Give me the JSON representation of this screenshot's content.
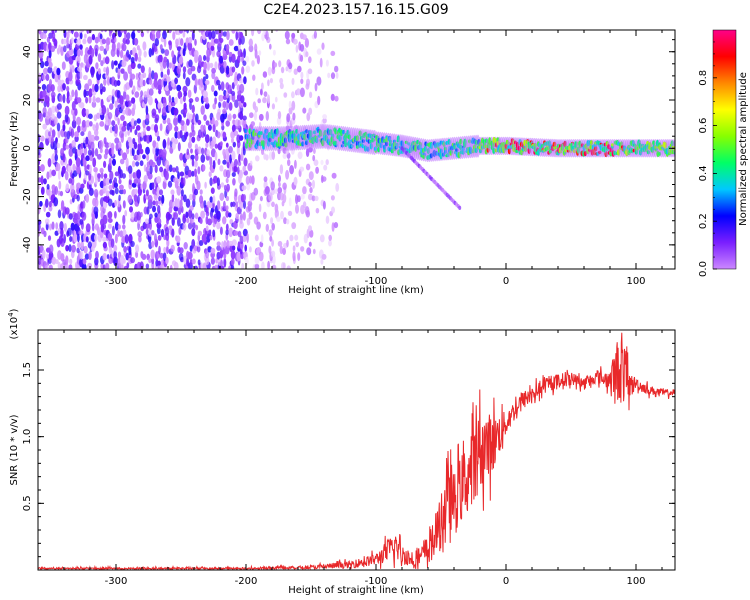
{
  "title": "C2E4.2023.157.16.15.G09",
  "colors": {
    "snr_line": "#e8282a",
    "spectrogram_scale": [
      "#ffffff",
      "#cc88ff",
      "#7a1fff",
      "#0000ff",
      "#00c8ff",
      "#00ff66",
      "#88ff00",
      "#ffff00",
      "#ff8800",
      "#ff0000",
      "#ff0088"
    ]
  },
  "chart_data": [
    {
      "type": "heatmap",
      "name": "spectrogram",
      "xlabel": "Height of straight line (km)",
      "ylabel": "Frequency (Hz)",
      "xlim": [
        -360,
        130
      ],
      "ylim": [
        -50,
        49
      ],
      "xticks": [
        -300,
        -200,
        -100,
        0,
        100
      ],
      "xtick_labels": [
        "-300",
        "-200",
        "-100",
        "0",
        "100"
      ],
      "yticks": [
        40,
        20,
        0,
        -20,
        -40
      ],
      "ytick_labels": [
        "40",
        "20",
        "0",
        "-20",
        "-40"
      ],
      "colorbar": {
        "label": "Normalized spectral amplitude",
        "range": [
          0,
          1
        ],
        "ticks": [
          0.0,
          0.2,
          0.4,
          0.6,
          0.8
        ],
        "tick_labels": [
          "0.0",
          "0.2",
          "0.4",
          "0.6",
          "0.8"
        ]
      },
      "features": {
        "noise_region_x": [
          -360,
          -130
        ],
        "dense_noise_region_x": [
          -360,
          -200
        ],
        "signal_band_x": [
          -200,
          130
        ],
        "signal_band_center_hz": [
          [
            -200,
            4
          ],
          [
            -170,
            4
          ],
          [
            -140,
            5
          ],
          [
            -110,
            3
          ],
          [
            -80,
            1
          ],
          [
            -60,
            -1
          ],
          [
            -40,
            0
          ],
          [
            -20,
            1
          ],
          [
            0,
            1
          ],
          [
            40,
            0
          ],
          [
            80,
            0
          ],
          [
            130,
            0
          ]
        ],
        "peak_region_x": [
          -15,
          100
        ]
      }
    },
    {
      "type": "line",
      "name": "snr",
      "xlabel": "Height of straight line (km)",
      "ylabel": "SNR (10 * v/v)",
      "y_multiplier": "(x10",
      "y_multiplier_exp": "4",
      "y_multiplier_close": ")",
      "xlim": [
        -360,
        130
      ],
      "ylim": [
        0,
        1.8
      ],
      "xticks": [
        -300,
        -200,
        -100,
        0,
        100
      ],
      "xtick_labels": [
        "-300",
        "-200",
        "-100",
        "0",
        "100"
      ],
      "yticks": [
        0.5,
        1.0,
        1.5
      ],
      "ytick_labels": [
        "0.5",
        "1.0",
        "1.5"
      ],
      "series": [
        {
          "x": [
            -360,
            -300,
            -250,
            -200,
            -150,
            -120,
            -100,
            -90,
            -85,
            -80,
            -70,
            -60,
            -50,
            -45,
            -40,
            -30,
            -20,
            -10,
            0,
            10,
            20,
            30,
            40,
            50,
            60,
            70,
            80,
            85,
            90,
            95,
            100,
            110,
            120,
            130
          ],
          "y": [
            0.01,
            0.01,
            0.01,
            0.01,
            0.02,
            0.04,
            0.08,
            0.15,
            0.18,
            0.12,
            0.06,
            0.15,
            0.35,
            0.55,
            0.5,
            0.7,
            0.9,
            0.95,
            1.1,
            1.25,
            1.32,
            1.38,
            1.42,
            1.44,
            1.4,
            1.45,
            1.42,
            1.5,
            1.5,
            1.38,
            1.4,
            1.35,
            1.33,
            1.33
          ],
          "noise": [
            0.01,
            0.01,
            0.01,
            0.01,
            0.015,
            0.03,
            0.05,
            0.1,
            0.12,
            0.08,
            0.05,
            0.12,
            0.22,
            0.25,
            0.25,
            0.3,
            0.32,
            0.25,
            0.1,
            0.08,
            0.07,
            0.06,
            0.06,
            0.05,
            0.05,
            0.05,
            0.08,
            0.25,
            0.3,
            0.12,
            0.05,
            0.04,
            0.03,
            0.03
          ]
        }
      ]
    }
  ]
}
